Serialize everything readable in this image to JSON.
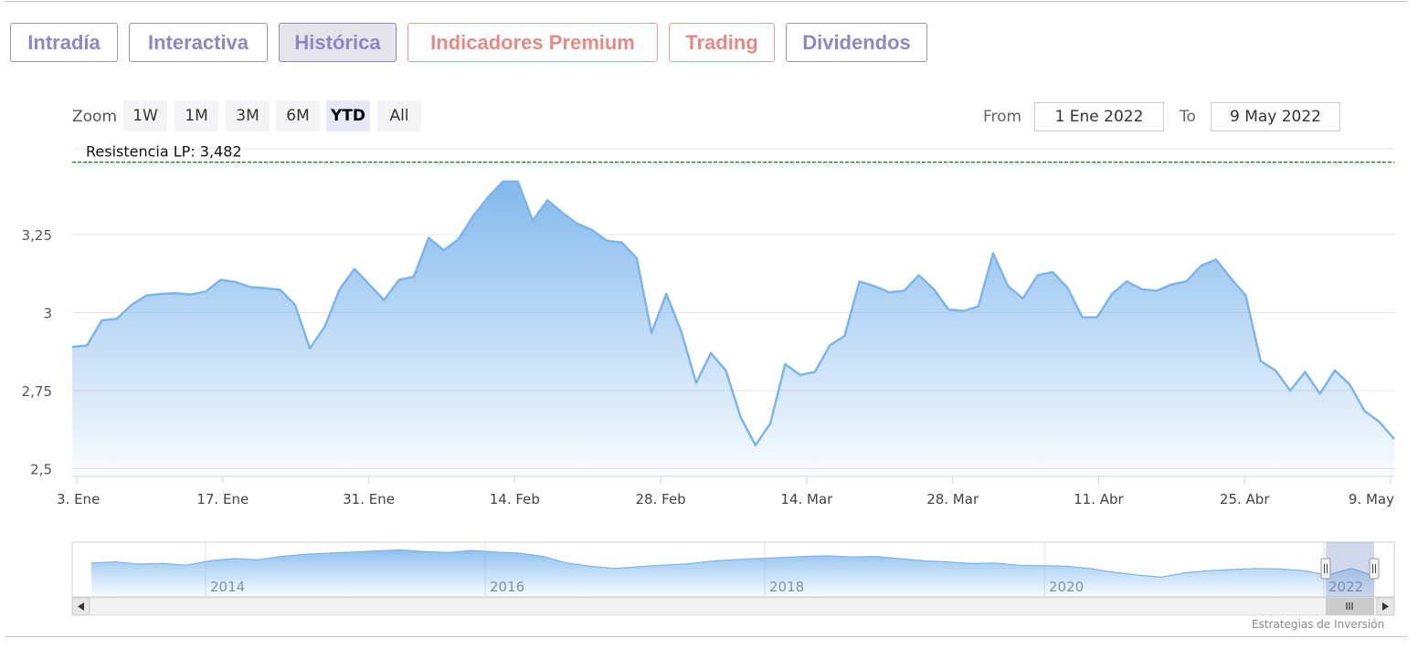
{
  "tabs": [
    {
      "label": "Intradía",
      "active": false,
      "accent": "#8f87c3"
    },
    {
      "label": "Interactiva",
      "active": false,
      "accent": "#8f87c3"
    },
    {
      "label": "Histórica",
      "active": true,
      "accent": "#8f87c3"
    },
    {
      "label": "Indicadores Premium",
      "active": false,
      "accent": "#e38b86"
    },
    {
      "label": "Trading",
      "active": false,
      "accent": "#e38b86"
    },
    {
      "label": "Dividendos",
      "active": false,
      "accent": "#8f87c3"
    }
  ],
  "zoom": {
    "label": "Zoom",
    "buttons": [
      "1W",
      "1M",
      "3M",
      "6M",
      "YTD",
      "All"
    ],
    "selected": "YTD"
  },
  "range": {
    "from_label": "From",
    "from_value": "1 Ene 2022",
    "to_label": "To",
    "to_value": "9 May 2022"
  },
  "credit": "Estrategias de Inversión",
  "chart_data": {
    "type": "area",
    "series": [
      {
        "values": [
          2.89,
          2.895,
          2.975,
          2.98,
          3.025,
          3.055,
          3.06,
          3.062,
          3.058,
          3.068,
          3.105,
          3.098,
          3.082,
          3.078,
          3.073,
          3.025,
          2.885,
          2.955,
          3.075,
          3.14,
          3.09,
          3.04,
          3.105,
          3.115,
          3.24,
          3.2,
          3.235,
          3.31,
          3.37,
          3.42,
          3.42,
          3.295,
          3.36,
          3.32,
          3.285,
          3.265,
          3.23,
          3.225,
          3.175,
          2.935,
          3.06,
          2.94,
          2.775,
          2.87,
          2.815,
          2.665,
          2.575,
          2.645,
          2.835,
          2.8,
          2.81,
          2.895,
          2.925,
          3.1,
          3.085,
          3.065,
          3.07,
          3.12,
          3.075,
          3.01,
          3.005,
          3.02,
          3.19,
          3.085,
          3.045,
          3.12,
          3.13,
          3.08,
          2.985,
          2.985,
          3.06,
          3.1,
          3.075,
          3.07,
          3.09,
          3.1,
          3.15,
          3.17,
          3.11,
          3.055,
          2.845,
          2.815,
          2.75,
          2.81,
          2.74,
          2.815,
          2.77,
          2.685,
          2.65,
          2.595
        ]
      }
    ],
    "x_range": [
      "3 Ene 2022",
      "9 May 2022"
    ],
    "x_tick_labels": [
      "3. Ene",
      "17. Ene",
      "31. Ene",
      "14. Feb",
      "28. Feb",
      "14. Mar",
      "28. Mar",
      "11. Abr",
      "25. Abr",
      "9. May"
    ],
    "y_tick_labels": [
      "2,5",
      "2,75",
      "3",
      "3,25"
    ],
    "y_ticks": [
      2.5,
      2.75,
      3,
      3.25
    ],
    "ylim": [
      2.475,
      3.525
    ],
    "grid": true,
    "plot_line": {
      "label": "Resistencia LP: 3,482",
      "value": 3.482,
      "color": "#1a8a1a",
      "style": "dashed"
    },
    "series_color": "#7cb5ec",
    "navigator": {
      "x_tick_labels": [
        "2014",
        "2016",
        "2018",
        "2020",
        "2022"
      ],
      "values": [
        0.62,
        0.64,
        0.6,
        0.61,
        0.58,
        0.66,
        0.7,
        0.68,
        0.74,
        0.78,
        0.8,
        0.82,
        0.84,
        0.86,
        0.83,
        0.81,
        0.85,
        0.82,
        0.8,
        0.74,
        0.62,
        0.56,
        0.52,
        0.55,
        0.58,
        0.6,
        0.65,
        0.68,
        0.7,
        0.72,
        0.74,
        0.75,
        0.73,
        0.74,
        0.7,
        0.66,
        0.64,
        0.61,
        0.62,
        0.58,
        0.57,
        0.56,
        0.52,
        0.45,
        0.4,
        0.36,
        0.44,
        0.48,
        0.5,
        0.52,
        0.51,
        0.48,
        0.4,
        0.52,
        0.38
      ]
    }
  }
}
